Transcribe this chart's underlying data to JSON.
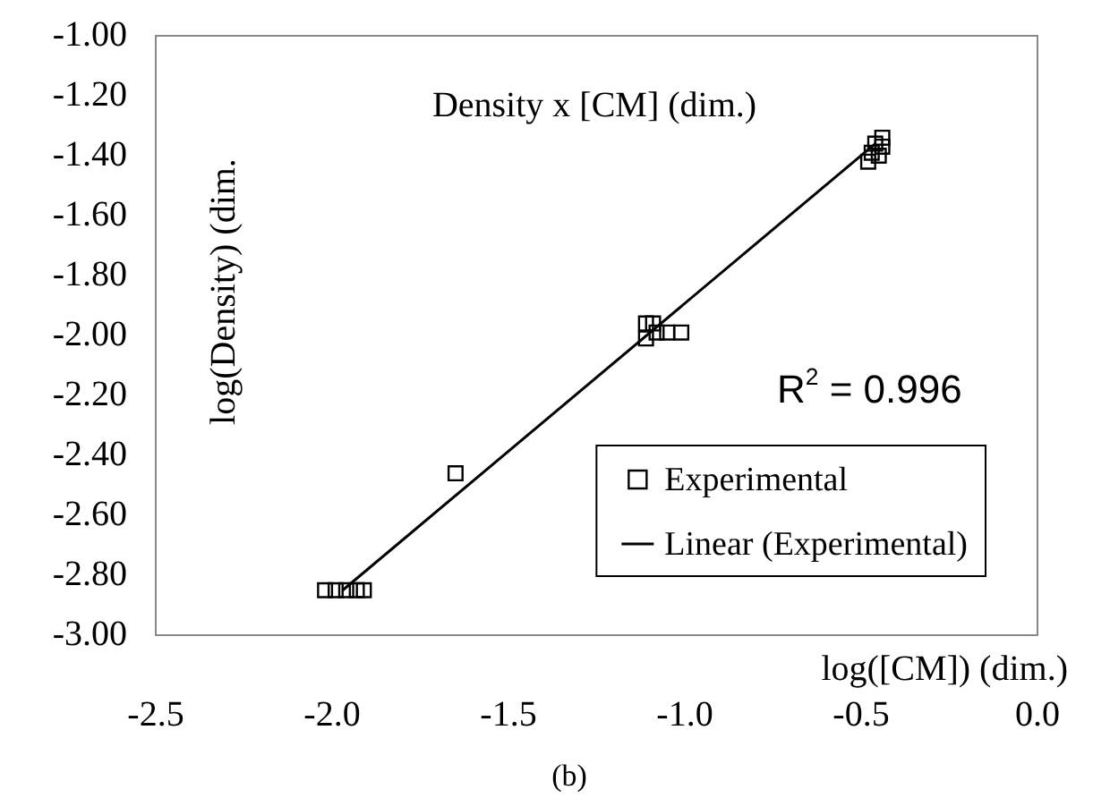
{
  "chart_data": {
    "type": "scatter",
    "title": "Density x [CM] (dim.)",
    "xlabel": "log([CM]) (dim.)",
    "ylabel": "log(Density) (dim.",
    "annotations": [
      "R$^{2}$ = 0.996",
      "(b)"
    ],
    "series": [
      {
        "name": "Experimental",
        "type": "scatter",
        "color": "#000000",
        "marker": "square",
        "x": [
          -2.02,
          -1.99,
          -1.96,
          -1.93,
          -1.91,
          -1.65,
          -1.11,
          -1.11,
          -1.09,
          -1.08,
          -1.05,
          -1.01,
          -0.48,
          -0.47,
          -0.46,
          -0.44,
          -0.44,
          -0.45
        ],
        "values": [
          -2.85,
          -2.85,
          -2.85,
          -2.85,
          -2.85,
          -2.46,
          -1.96,
          -2.01,
          -1.96,
          -1.99,
          -1.99,
          -1.99,
          -1.42,
          -1.39,
          -1.36,
          -1.34,
          -1.37,
          -1.4
        ]
      },
      {
        "name": "Linear (Experimental)",
        "type": "line",
        "color": "#000000",
        "marker": "none",
        "line_style": "solid",
        "x": [
          -1.97,
          -0.46
        ],
        "values": [
          -2.85,
          -1.36
        ]
      }
    ],
    "xlim": [
      -2.5,
      0
    ],
    "xticks": [
      {
        "value": -2.5,
        "label": "-2.5"
      },
      {
        "value": -2,
        "label": "-2.0"
      },
      {
        "value": -1.5,
        "label": "-1.5"
      },
      {
        "value": -1,
        "label": "-1.0"
      },
      {
        "value": -0.5,
        "label": "-0.5"
      },
      {
        "value": 0,
        "label": "0.0"
      }
    ],
    "ylim": [
      -3,
      -1
    ],
    "yticks": [
      {
        "value": -3,
        "label": "-3.00"
      },
      {
        "value": -2.8,
        "label": "-2.80"
      },
      {
        "value": -2.6,
        "label": "-2.60"
      },
      {
        "value": -2.4,
        "label": "-2.40"
      },
      {
        "value": -2.2,
        "label": "-2.20"
      },
      {
        "value": -2,
        "label": "-2.00"
      },
      {
        "value": -1.8,
        "label": "-1.80"
      },
      {
        "value": -1.6,
        "label": "-1.60"
      },
      {
        "value": -1.4,
        "label": "-1.40"
      },
      {
        "value": -1.2,
        "label": "-1.20"
      },
      {
        "value": -1,
        "label": "-1.00"
      }
    ],
    "grid": false,
    "legend": "bottom right"
  }
}
